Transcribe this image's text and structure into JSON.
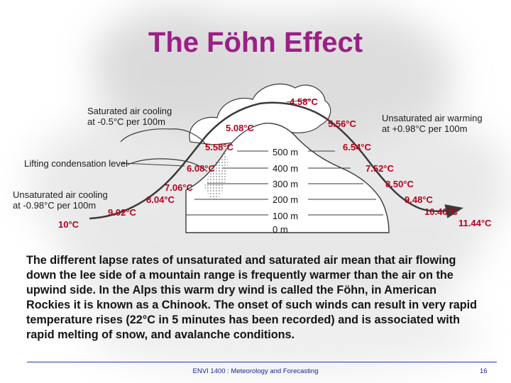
{
  "slide": {
    "title": "The Föhn Effect",
    "footer": "ENVI 1400 : Meteorology and Forecasting",
    "page_number": "16",
    "colors": {
      "title": "#9c1f86",
      "temperatures": "#b8001d",
      "text": "#141414",
      "footer": "#1a1a9a"
    }
  },
  "diagram": {
    "labels": {
      "saturated_cooling": [
        "Saturated air cooling",
        "at -0.5°C per 100m"
      ],
      "unsaturated_warming": [
        "Unsaturated air warming",
        "at +0.98°C per 100m"
      ],
      "lifting_condensation_level": "Lifting condensation level",
      "unsaturated_cooling": [
        "Unsaturated air cooling",
        "at -0.98°C per 100m"
      ]
    },
    "altitudes": [
      "500 m",
      "400 m",
      "300 m",
      "200 m",
      "100 m",
      "0 m"
    ],
    "windward_temperatures": [
      "10°C",
      "9.02°C",
      "8.04°C",
      "7.06°C",
      "6.08°C",
      "5.58°C",
      "5.08°C",
      "4.58°C"
    ],
    "leeward_temperatures": [
      "5.56°C",
      "6.54°C",
      "7.52°C",
      "8.50°C",
      "9.48°C",
      "10.46°C",
      "11.44°C"
    ]
  },
  "body_text": "The different lapse rates of unsaturated and saturated air mean that air flowing down the lee side of a mountain range is frequently warmer than the air on the upwind side. In the Alps this warm dry wind is called the Föhn, in American Rockies it is known as a Chinook. The onset of such winds can result in very rapid temperature rises (22°C in 5 minutes has been recorded) and is associated with rapid melting of snow, and avalanche conditions."
}
